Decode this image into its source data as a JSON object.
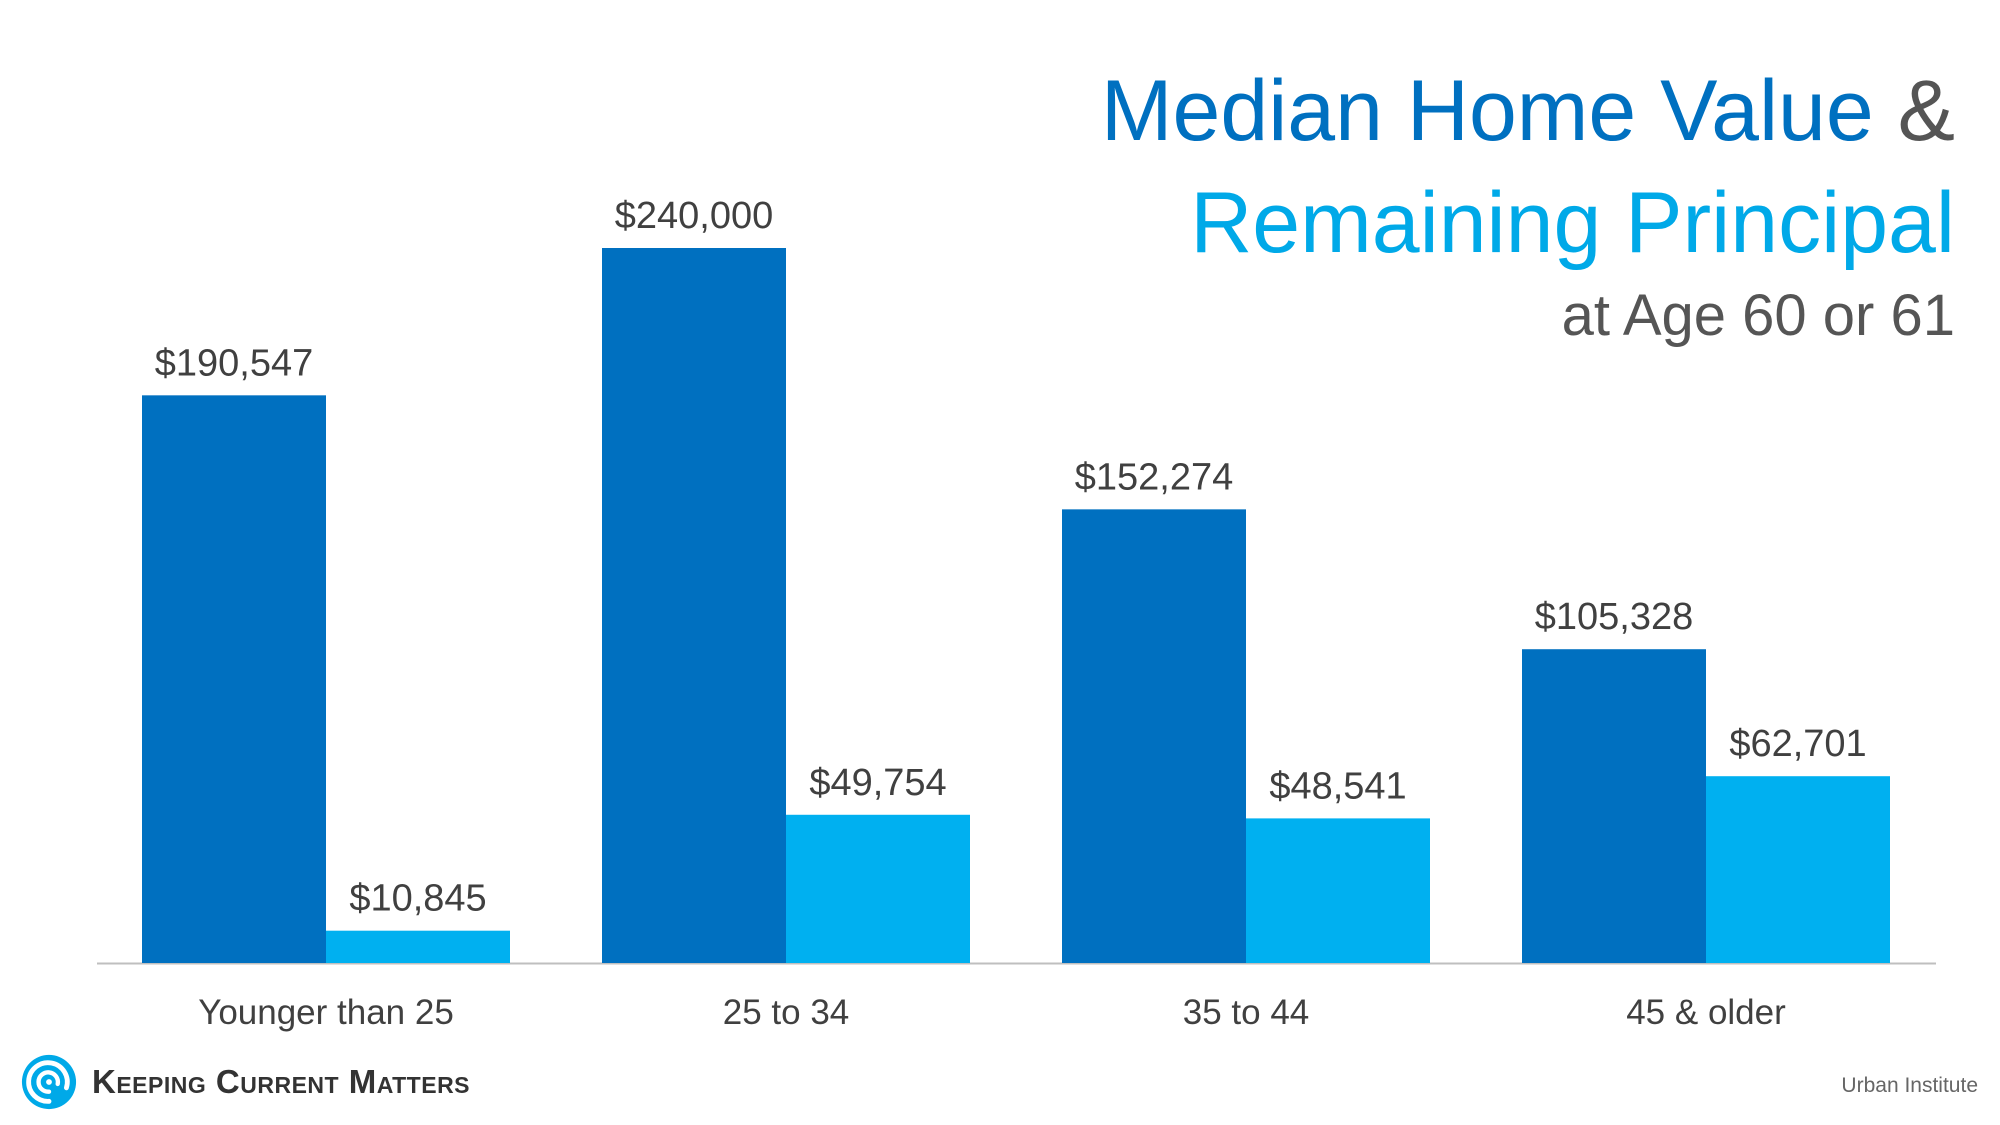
{
  "title": {
    "line1": "Median Home Value",
    "ampersand": "&",
    "line2": "Remaining Principal",
    "line3": "at Age 60 or 61"
  },
  "brand": {
    "name": "Keeping Current Matters",
    "icon": "swirl-logo-icon"
  },
  "source": "Urban Institute",
  "colors": {
    "home_value": "#0070c0",
    "principal": "#00b0f0",
    "label": "#404040",
    "axis": "#bfbfbf"
  },
  "chart_data": {
    "type": "bar",
    "categories": [
      "Younger than 25",
      "25 to 34",
      "35 to 44",
      "45 & older"
    ],
    "series": [
      {
        "values": [
          190547,
          240000,
          152274,
          105328
        ],
        "labels": [
          "$190,547",
          "$240,000",
          "$152,274",
          "$105,328"
        ]
      },
      {
        "values": [
          10845,
          49754,
          48541,
          62701
        ],
        "labels": [
          "$10,845",
          "$49,754",
          "$48,541",
          "$62,701"
        ]
      }
    ],
    "ylim": [
      0,
      240000
    ],
    "grid": false,
    "legend": "none"
  }
}
